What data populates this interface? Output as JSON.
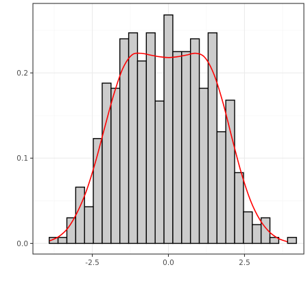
{
  "chart_data": {
    "type": "bar",
    "title": "",
    "xlabel": "",
    "ylabel": "",
    "xlim": [
      -4.45,
      4.45
    ],
    "ylim": [
      -0.0125,
      0.2815
    ],
    "grid": true,
    "bin_width": 0.29,
    "x_ticks": [
      -2.5,
      0.0,
      2.5
    ],
    "x_tick_labels": [
      "-2.5",
      "0.0",
      "2.5"
    ],
    "y_ticks": [
      0.0,
      0.1,
      0.2
    ],
    "y_tick_labels": [
      "0.0",
      "0.1",
      "0.2"
    ],
    "bins": [
      {
        "x": -3.77,
        "value": 0.007
      },
      {
        "x": -3.48,
        "value": 0.007
      },
      {
        "x": -3.19,
        "value": 0.03
      },
      {
        "x": -2.9,
        "value": 0.066
      },
      {
        "x": -2.61,
        "value": 0.043
      },
      {
        "x": -2.32,
        "value": 0.123
      },
      {
        "x": -2.03,
        "value": 0.188
      },
      {
        "x": -1.74,
        "value": 0.182
      },
      {
        "x": -1.45,
        "value": 0.24
      },
      {
        "x": -1.16,
        "value": 0.247
      },
      {
        "x": -0.87,
        "value": 0.214
      },
      {
        "x": -0.58,
        "value": 0.247
      },
      {
        "x": -0.29,
        "value": 0.167
      },
      {
        "x": 0.0,
        "value": 0.268
      },
      {
        "x": 0.29,
        "value": 0.225
      },
      {
        "x": 0.58,
        "value": 0.225
      },
      {
        "x": 0.87,
        "value": 0.24
      },
      {
        "x": 1.16,
        "value": 0.182
      },
      {
        "x": 1.45,
        "value": 0.247
      },
      {
        "x": 1.74,
        "value": 0.131
      },
      {
        "x": 2.03,
        "value": 0.168
      },
      {
        "x": 2.32,
        "value": 0.083
      },
      {
        "x": 2.61,
        "value": 0.037
      },
      {
        "x": 2.9,
        "value": 0.022
      },
      {
        "x": 3.19,
        "value": 0.03
      },
      {
        "x": 3.48,
        "value": 0.007
      },
      {
        "x": 3.77,
        "value": 0.0
      },
      {
        "x": 4.06,
        "value": 0.007
      }
    ],
    "series": [
      {
        "type": "line",
        "color": "#ff0000",
        "x": [
          -3.9,
          -3.6,
          -3.3,
          -3.0,
          -2.7,
          -2.4,
          -2.1,
          -1.8,
          -1.5,
          -1.2,
          -0.9,
          -0.6,
          -0.3,
          0.0,
          0.3,
          0.6,
          0.9,
          1.2,
          1.5,
          1.8,
          2.1,
          2.4,
          2.7,
          3.0,
          3.3,
          3.6,
          3.9
        ],
        "values": [
          0.003,
          0.008,
          0.018,
          0.036,
          0.061,
          0.095,
          0.135,
          0.174,
          0.205,
          0.221,
          0.223,
          0.221,
          0.219,
          0.218,
          0.219,
          0.221,
          0.223,
          0.218,
          0.198,
          0.164,
          0.122,
          0.082,
          0.05,
          0.028,
          0.014,
          0.006,
          0.002
        ]
      }
    ],
    "colors": {
      "bar_fill": "#cccccc",
      "bar_stroke": "#000000",
      "density_line": "#ff0000",
      "grid_major": "#ebebeb",
      "grid_minor": "#f5f5f5",
      "panel_border": "#333333"
    }
  }
}
